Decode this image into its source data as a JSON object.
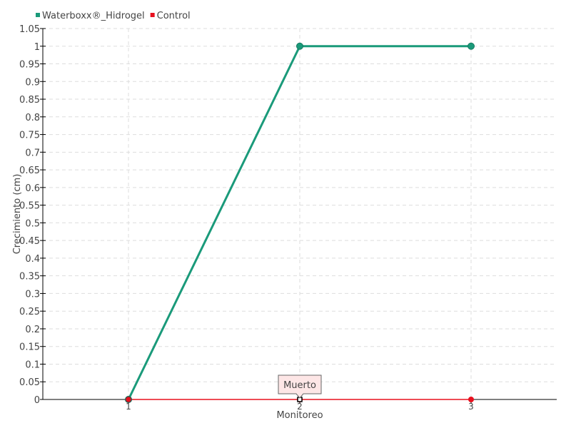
{
  "chart_data": {
    "type": "line",
    "title": "",
    "xlabel": "Monitoreo",
    "ylabel": "Crecimiento (cm)",
    "categories": [
      "1",
      "2",
      "3"
    ],
    "ylim": [
      0,
      1.05
    ],
    "ytick_step": 0.05,
    "yticks": [
      "0",
      "0.05",
      "0.1",
      "0.15",
      "0.2",
      "0.25",
      "0.3",
      "0.35",
      "0.4",
      "0.45",
      "0.5",
      "0.55",
      "0.6",
      "0.65",
      "0.7",
      "0.75",
      "0.8",
      "0.85",
      "0.9",
      "0.95",
      "1",
      "1.05"
    ],
    "grid": true,
    "legend_position": "top-left",
    "series": [
      {
        "name": "Waterboxx®_Hidrogel",
        "values": [
          0,
          1,
          1
        ],
        "color": "#1a9a7a"
      },
      {
        "name": "Control",
        "values": [
          0,
          0,
          0
        ],
        "color": "#e8101e"
      }
    ],
    "annotations": [
      {
        "series": "Control",
        "category": "2",
        "text": "Muerto"
      }
    ]
  }
}
